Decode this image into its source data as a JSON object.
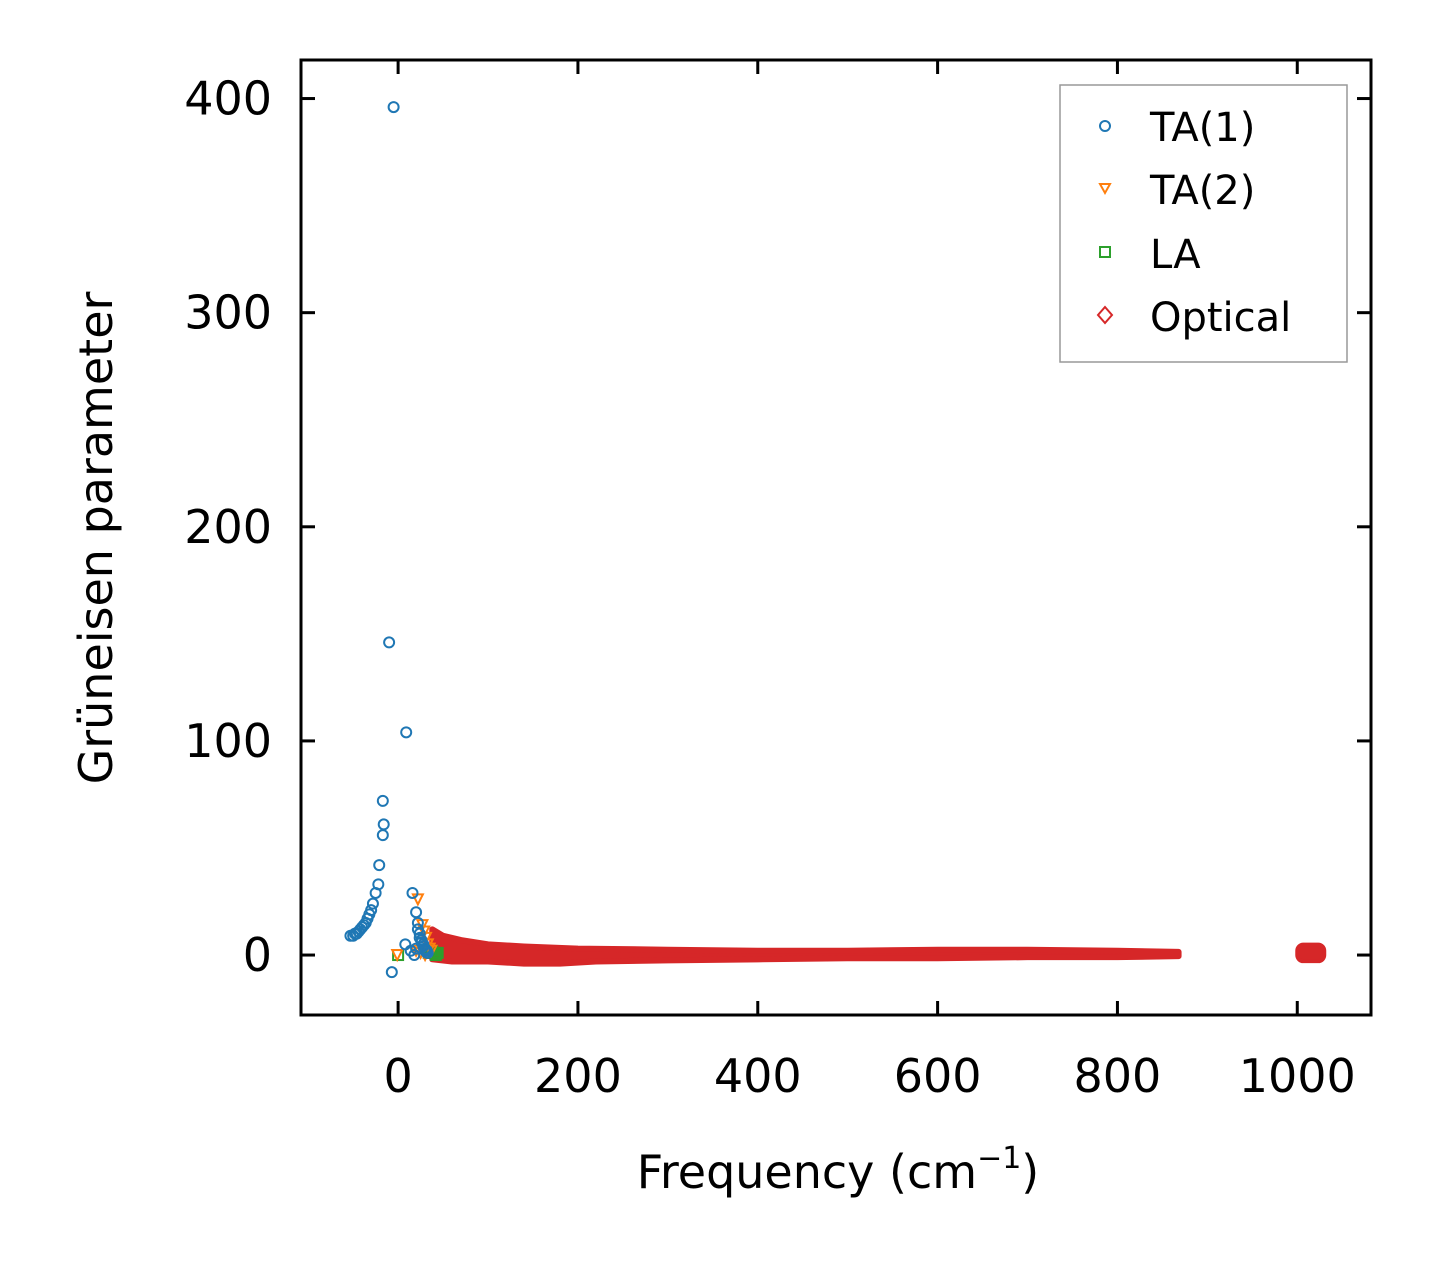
{
  "chart_data": {
    "type": "scatter",
    "xlabel": "Frequency (cm",
    "xlabel_sup": "−1",
    "xlabel_suffix": ")",
    "ylabel": "Grüneisen parameter",
    "xlim": [
      -108,
      1082
    ],
    "ylim": [
      -28,
      418
    ],
    "xticks": [
      0,
      200,
      400,
      600,
      800,
      1000
    ],
    "yticks": [
      0,
      100,
      200,
      300,
      400
    ],
    "xtick_labels": [
      "0",
      "200",
      "400",
      "600",
      "800",
      "1000"
    ],
    "ytick_labels": [
      "0",
      "100",
      "200",
      "300",
      "400"
    ],
    "tick_direction": "in",
    "ticks_on_all_sides": true,
    "grid": false,
    "legend_position": "top-right",
    "series": [
      {
        "name": "TA(1)",
        "marker": "circle-open",
        "color": "#1f77b4",
        "points": [
          [
            -5,
            396
          ],
          [
            -10,
            146
          ],
          [
            9,
            104
          ],
          [
            -17,
            72
          ],
          [
            -16,
            61
          ],
          [
            -17,
            56
          ],
          [
            -21,
            42
          ],
          [
            -22,
            33
          ],
          [
            -25,
            29
          ],
          [
            -28,
            24
          ],
          [
            -30,
            21
          ],
          [
            -32,
            19
          ],
          [
            -34,
            17
          ],
          [
            -36,
            15
          ],
          [
            -38,
            14
          ],
          [
            -40,
            13
          ],
          [
            -42,
            12
          ],
          [
            -44,
            11
          ],
          [
            -46,
            10
          ],
          [
            -48,
            10
          ],
          [
            -50,
            9
          ],
          [
            -53,
            9
          ],
          [
            -7,
            -8
          ],
          [
            8,
            5
          ],
          [
            16,
            29
          ],
          [
            20,
            20
          ],
          [
            22,
            15
          ],
          [
            22,
            12
          ],
          [
            24,
            10
          ],
          [
            24,
            8
          ],
          [
            26,
            7
          ],
          [
            26,
            6
          ],
          [
            28,
            5
          ],
          [
            28,
            4
          ],
          [
            30,
            3
          ],
          [
            30,
            2
          ],
          [
            32,
            2
          ],
          [
            32,
            1
          ],
          [
            33,
            1
          ],
          [
            18,
            0
          ],
          [
            14,
            2
          ],
          [
            20,
            3
          ]
        ]
      },
      {
        "name": "TA(2)",
        "marker": "triangle-down-open",
        "color": "#ff7f0e",
        "points": [
          [
            -1,
            0
          ],
          [
            22,
            26
          ],
          [
            27,
            14
          ],
          [
            29,
            11
          ],
          [
            31,
            8
          ],
          [
            33,
            5
          ],
          [
            35,
            3
          ],
          [
            37,
            2
          ],
          [
            25,
            1
          ],
          [
            30,
            0
          ],
          [
            20,
            2
          ]
        ]
      },
      {
        "name": "LA",
        "marker": "square-open",
        "color": "#2ca02c",
        "points": [
          [
            0,
            0
          ],
          [
            36,
            1
          ],
          [
            38,
            2
          ],
          [
            40,
            1
          ],
          [
            42,
            0
          ],
          [
            34,
            1
          ],
          [
            44,
            1
          ]
        ]
      },
      {
        "name": "Optical",
        "marker": "diamond-open",
        "color": "#d62728",
        "band": {
          "x_start": 38,
          "x_end": 868,
          "upper": [
            [
              38,
              12
            ],
            [
              50,
              9
            ],
            [
              70,
              7
            ],
            [
              100,
              5
            ],
            [
              140,
              4
            ],
            [
              200,
              3
            ],
            [
              300,
              2.5
            ],
            [
              400,
              2
            ],
            [
              500,
              2
            ],
            [
              600,
              2.5
            ],
            [
              700,
              2.5
            ],
            [
              800,
              2
            ],
            [
              868,
              1.5
            ]
          ],
          "lower": [
            [
              38,
              -2
            ],
            [
              60,
              -3
            ],
            [
              100,
              -3
            ],
            [
              140,
              -4
            ],
            [
              180,
              -4
            ],
            [
              220,
              -3
            ],
            [
              300,
              -2.5
            ],
            [
              400,
              -2
            ],
            [
              500,
              -1.5
            ],
            [
              600,
              -1.5
            ],
            [
              700,
              -1
            ],
            [
              800,
              -1
            ],
            [
              868,
              -0.5
            ]
          ]
        },
        "cluster": {
          "x_start": 1000,
          "x_end": 1030,
          "y_min": -1,
          "y_max": 3
        }
      }
    ]
  }
}
